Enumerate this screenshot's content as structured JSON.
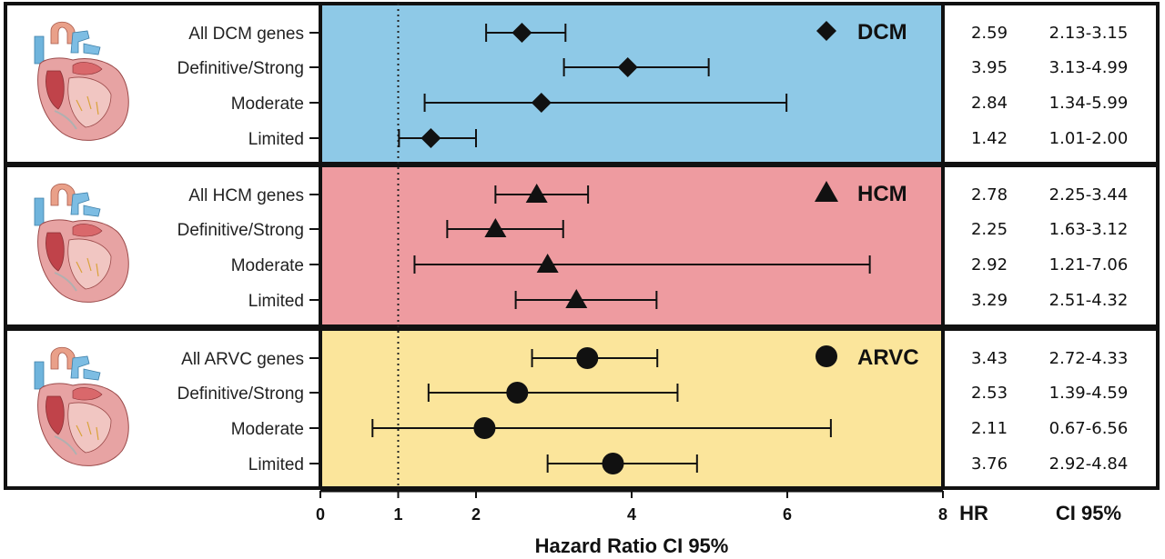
{
  "chart_data": {
    "type": "forest",
    "xlabel": "Hazard Ratio CI 95%",
    "xlim": [
      0,
      8
    ],
    "xticks": [
      "0",
      "1",
      "2",
      "4",
      "6",
      "8"
    ],
    "reference_line": 1,
    "hr_header": "HR",
    "ci_header": "CI 95%",
    "groups": [
      {
        "name": "DCM",
        "marker": "diamond",
        "color": "#8ec9e7",
        "rows": [
          {
            "label": "All DCM genes",
            "hr": 2.59,
            "ci_low": 2.13,
            "ci_high": 3.15,
            "hr_text": "2.59",
            "ci_text": "2.13-3.15"
          },
          {
            "label": "Definitive/Strong",
            "hr": 3.95,
            "ci_low": 3.13,
            "ci_high": 4.99,
            "hr_text": "3.95",
            "ci_text": "3.13-4.99"
          },
          {
            "label": "Moderate",
            "hr": 2.84,
            "ci_low": 1.34,
            "ci_high": 5.99,
            "hr_text": "2.84",
            "ci_text": "1.34-5.99"
          },
          {
            "label": "Limited",
            "hr": 1.42,
            "ci_low": 1.01,
            "ci_high": 2.0,
            "hr_text": "1.42",
            "ci_text": "1.01-2.00"
          }
        ]
      },
      {
        "name": "HCM",
        "marker": "triangle",
        "color": "#ee9ba0",
        "rows": [
          {
            "label": "All HCM genes",
            "hr": 2.78,
            "ci_low": 2.25,
            "ci_high": 3.44,
            "hr_text": "2.78",
            "ci_text": "2.25-3.44"
          },
          {
            "label": "Definitive/Strong",
            "hr": 2.25,
            "ci_low": 1.63,
            "ci_high": 3.12,
            "hr_text": "2.25",
            "ci_text": "1.63-3.12"
          },
          {
            "label": "Moderate",
            "hr": 2.92,
            "ci_low": 1.21,
            "ci_high": 7.06,
            "hr_text": "2.92",
            "ci_text": "1.21-7.06"
          },
          {
            "label": "Limited",
            "hr": 3.29,
            "ci_low": 2.51,
            "ci_high": 4.32,
            "hr_text": "3.29",
            "ci_text": "2.51-4.32"
          }
        ]
      },
      {
        "name": "ARVC",
        "marker": "circle",
        "color": "#fbe59b",
        "rows": [
          {
            "label": "All ARVC genes",
            "hr": 3.43,
            "ci_low": 2.72,
            "ci_high": 4.33,
            "hr_text": "3.43",
            "ci_text": "2.72-4.33"
          },
          {
            "label": "Definitive/Strong",
            "hr": 2.53,
            "ci_low": 1.39,
            "ci_high": 4.59,
            "hr_text": "2.53",
            "ci_text": "1.39-4.59"
          },
          {
            "label": "Moderate",
            "hr": 2.11,
            "ci_low": 0.67,
            "ci_high": 6.56,
            "hr_text": "2.11",
            "ci_text": "0.67-6.56"
          },
          {
            "label": "Limited",
            "hr": 3.76,
            "ci_low": 2.92,
            "ci_high": 4.84,
            "hr_text": "3.76",
            "ci_text": "2.92-4.84"
          }
        ]
      }
    ]
  }
}
